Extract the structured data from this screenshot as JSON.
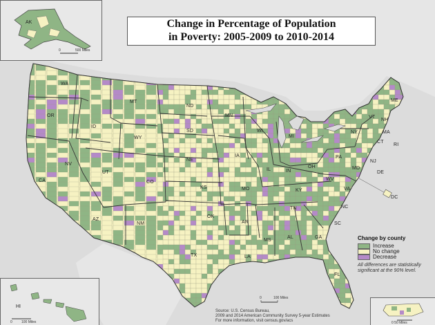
{
  "title": {
    "line1": "Change in Percentage of Population",
    "line2": "in Poverty: 2005-2009 to 2010-2014"
  },
  "legend": {
    "title": "Change by county",
    "items": [
      {
        "label": "Increase",
        "color": "#8fb585"
      },
      {
        "label": "No change",
        "color": "#f6f2c2"
      },
      {
        "label": "Decrease",
        "color": "#b48ac8"
      }
    ],
    "note_line1": "All differences are statistically",
    "note_line2": "significant at the 90% level."
  },
  "source": {
    "line1": "Source: U.S. Census Bureau,",
    "line2": "2009 and 2014 American Community Survey 5-year Estimates",
    "line3": "For more information, visit census.gov/acs"
  },
  "insets": {
    "alaska_label": "AK",
    "alaska_scale_zero": "0",
    "alaska_scale_label": "500 Miles",
    "hawaii_label": "HI",
    "hawaii_scale_zero": "0",
    "hawaii_scale_label": "100 Miles",
    "pr_scale_label": "0   50 Miles"
  },
  "main_scale": {
    "zero": "0",
    "label": "100 Miles"
  },
  "state_labels": [
    "WA",
    "OR",
    "CA",
    "NV",
    "ID",
    "MT",
    "WY",
    "UT",
    "AZ",
    "CO",
    "NM",
    "ND",
    "SD",
    "NE",
    "KS",
    "OK",
    "TX",
    "MN",
    "IA",
    "MO",
    "AR",
    "LA",
    "WI",
    "IL",
    "MI",
    "IN",
    "OH",
    "KY",
    "TN",
    "MS",
    "AL",
    "GA",
    "FL",
    "SC",
    "NC",
    "VA",
    "WV",
    "PA",
    "NY",
    "VT",
    "NH",
    "ME",
    "MA",
    "CT",
    "RI",
    "NJ",
    "MD",
    "DE",
    "DC"
  ],
  "colors": {
    "increase": "#8fb585",
    "no_change": "#f6f2c2",
    "decrease": "#b48ac8",
    "background": "#dcdcdc",
    "water": "#dcdcdc"
  }
}
